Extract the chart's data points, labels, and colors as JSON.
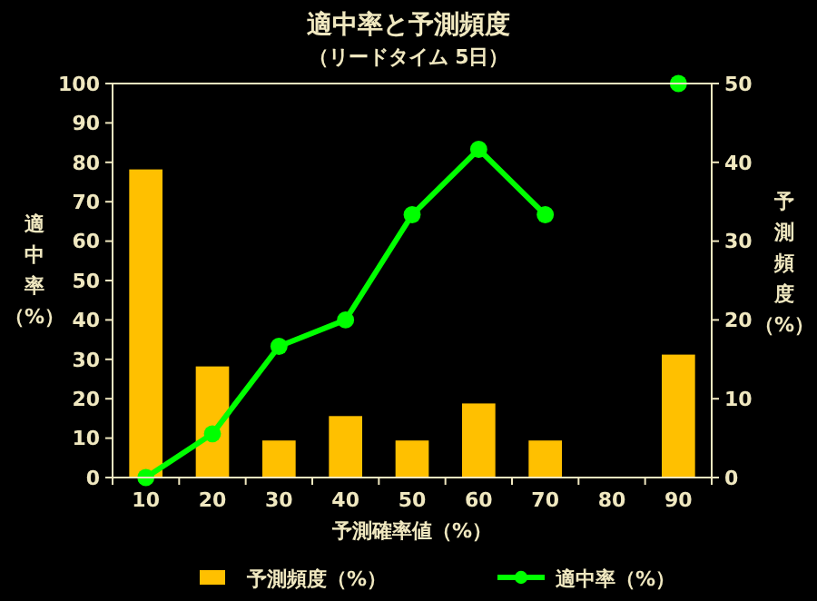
{
  "chart_data": {
    "type": "bar",
    "title": "適中率と予測頻度",
    "subtitle": "（リードタイム 5日）",
    "xlabel": "予測確率値（%）",
    "ylabel": "適中率（%）",
    "y2label": "予測頻度（%）",
    "categories": [
      "10",
      "20",
      "30",
      "40",
      "50",
      "60",
      "70",
      "80",
      "90"
    ],
    "series": [
      {
        "name": "予測頻度（%）",
        "axis": "y2",
        "color": "#ffc000",
        "values": [
          39.1,
          14.1,
          4.7,
          7.8,
          4.7,
          9.4,
          4.7,
          0,
          15.6
        ]
      },
      {
        "name": "適中率（%）",
        "type": "line",
        "axis": "y",
        "color": "#00ff00",
        "values": [
          0,
          11.1,
          33.3,
          40,
          66.7,
          83.3,
          66.7,
          null,
          100
        ]
      }
    ],
    "ylim": [
      0,
      100
    ],
    "yticks": [
      0,
      10,
      20,
      30,
      40,
      50,
      60,
      70,
      80,
      90,
      100
    ],
    "y2lim": [
      0,
      50
    ],
    "y2ticks": [
      0,
      10,
      20,
      30,
      40,
      50
    ],
    "legend": "bottom",
    "marker": "circle",
    "grid": false
  }
}
